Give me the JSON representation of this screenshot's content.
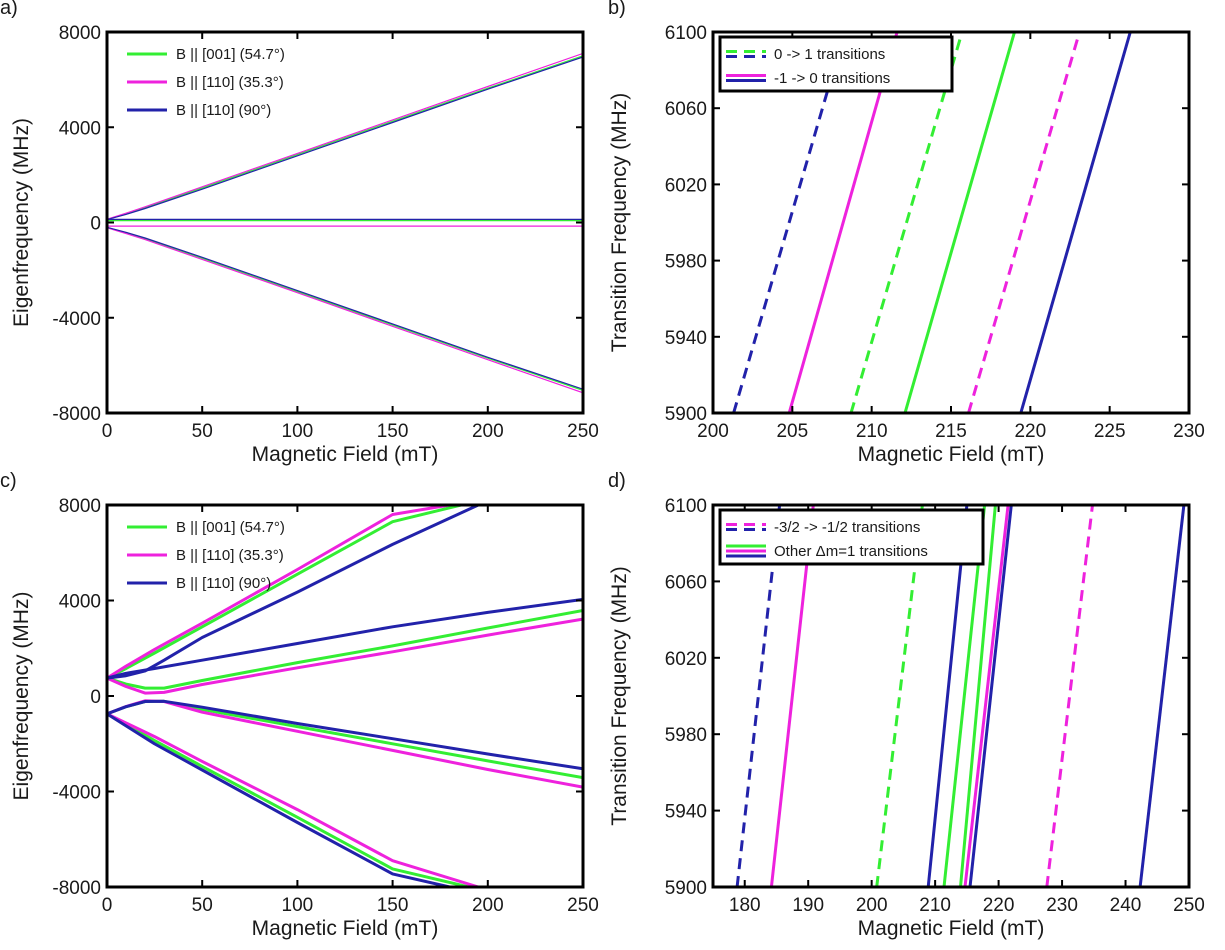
{
  "colors": {
    "green": "#33ee33",
    "magenta": "#ee22dd",
    "blue": "#2222aa"
  },
  "chart_data": [
    {
      "panel": "a)",
      "type": "line",
      "xlabel": "Magnetic Field (mT)",
      "ylabel": "Eigenfrequency (MHz)",
      "xlim": [
        0,
        250
      ],
      "ylim": [
        -8000,
        8000
      ],
      "xticks": [
        0,
        50,
        100,
        150,
        200,
        250
      ],
      "yticks": [
        -8000,
        -4000,
        0,
        4000,
        8000
      ],
      "grid": false,
      "legend": "top-left",
      "series": [
        {
          "name": "B || [001] (54.7°)",
          "color": "#33ee33",
          "lw": 1.2,
          "curves": [
            {
              "x": [
                0,
                10,
                20,
                50,
                100,
                150,
                200,
                250
              ],
              "y": [
                130,
                360,
                620,
                1450,
                2850,
                4250,
                5640,
                7000
              ]
            },
            {
              "x": [
                0,
                250
              ],
              "y": [
                80,
                80
              ]
            },
            {
              "x": [
                0,
                10,
                20,
                50,
                100,
                150,
                200,
                250
              ],
              "y": [
                -210,
                -430,
                -680,
                -1500,
                -2900,
                -4300,
                -5700,
                -7050
              ]
            }
          ]
        },
        {
          "name": "B || [110] (35.3°)",
          "color": "#ee22dd",
          "lw": 1.2,
          "curves": [
            {
              "x": [
                0,
                10,
                20,
                50,
                100,
                150,
                200,
                250
              ],
              "y": [
                140,
                390,
                660,
                1500,
                2900,
                4310,
                5710,
                7100
              ]
            },
            {
              "x": [
                0,
                250
              ],
              "y": [
                -150,
                -150
              ]
            },
            {
              "x": [
                0,
                10,
                20,
                50,
                100,
                150,
                200,
                250
              ],
              "y": [
                -220,
                -460,
                -720,
                -1550,
                -2950,
                -4360,
                -5760,
                -7150
              ]
            }
          ]
        },
        {
          "name": "B || [110] (90°)",
          "color": "#2222aa",
          "lw": 1.2,
          "curves": [
            {
              "x": [
                0,
                10,
                20,
                50,
                100,
                150,
                200,
                250
              ],
              "y": [
                120,
                340,
                590,
                1400,
                2800,
                4200,
                5600,
                6950
              ]
            },
            {
              "x": [
                0,
                250
              ],
              "y": [
                130,
                130
              ]
            },
            {
              "x": [
                0,
                10,
                20,
                50,
                100,
                150,
                200,
                250
              ],
              "y": [
                -200,
                -410,
                -650,
                -1460,
                -2860,
                -4260,
                -5660,
                -7000
              ]
            }
          ]
        }
      ]
    },
    {
      "panel": "b)",
      "type": "line",
      "xlabel": "Magnetic Field (mT)",
      "ylabel": "Transition Frequency (MHz)",
      "xlim": [
        200,
        230
      ],
      "ylim": [
        5900,
        6100
      ],
      "xticks": [
        200,
        205,
        210,
        215,
        220,
        225,
        230
      ],
      "yticks": [
        5900,
        5940,
        5980,
        6020,
        6060,
        6100
      ],
      "grid": false,
      "legend": "top-left",
      "legend_entries": [
        {
          "label": "0 -> 1 transitions",
          "style": "dashed",
          "colors": [
            "#33ee33",
            "#2222aa"
          ]
        },
        {
          "label": "-1 -> 0 transitions",
          "style": "solid",
          "colors": [
            "#ee22dd",
            "#2222aa"
          ]
        }
      ],
      "series": [
        {
          "color": "#2222aa",
          "dashed": true,
          "lw": 3,
          "curves": [
            {
              "x": [
                201.3,
                208.3
              ],
              "y": [
                5900,
                6100
              ]
            }
          ]
        },
        {
          "color": "#ee22dd",
          "dashed": false,
          "lw": 3,
          "curves": [
            {
              "x": [
                204.8,
                211.6
              ],
              "y": [
                5900,
                6100
              ]
            }
          ]
        },
        {
          "color": "#33ee33",
          "dashed": true,
          "lw": 3,
          "curves": [
            {
              "x": [
                208.7,
                215.7
              ],
              "y": [
                5900,
                6100
              ]
            }
          ]
        },
        {
          "color": "#33ee33",
          "dashed": false,
          "lw": 3,
          "curves": [
            {
              "x": [
                212.1,
                219.0
              ],
              "y": [
                5900,
                6100
              ]
            }
          ]
        },
        {
          "color": "#ee22dd",
          "dashed": true,
          "lw": 3,
          "curves": [
            {
              "x": [
                216.1,
                223.1
              ],
              "y": [
                5900,
                6100
              ]
            }
          ]
        },
        {
          "color": "#2222aa",
          "dashed": false,
          "lw": 3,
          "curves": [
            {
              "x": [
                219.4,
                226.3
              ],
              "y": [
                5900,
                6100
              ]
            }
          ]
        }
      ]
    },
    {
      "panel": "c)",
      "type": "line",
      "xlabel": "Magnetic Field (mT)",
      "ylabel": "Eigenfrequency (MHz)",
      "xlim": [
        0,
        250
      ],
      "ylim": [
        -8000,
        8000
      ],
      "xticks": [
        0,
        50,
        100,
        150,
        200,
        250
      ],
      "yticks": [
        -8000,
        -4000,
        0,
        4000,
        8000
      ],
      "grid": false,
      "legend": "top-left",
      "series": [
        {
          "name": "B || [001] (54.7°)",
          "color": "#33ee33",
          "lw": 3,
          "curves": [
            {
              "x": [
                0,
                10,
                25,
                50,
                100,
                150,
                186
              ],
              "y": [
                750,
                1150,
                1800,
                2900,
                5100,
                7300,
                8000
              ]
            },
            {
              "x": [
                0,
                10,
                20,
                30,
                50,
                100,
                150,
                200,
                250
              ],
              "y": [
                750,
                500,
                330,
                330,
                650,
                1400,
                2100,
                2850,
                3580
              ]
            },
            {
              "x": [
                0,
                10,
                20,
                30,
                50,
                100,
                150,
                200,
                250
              ],
              "y": [
                -750,
                -450,
                -230,
                -220,
                -560,
                -1280,
                -2000,
                -2720,
                -3420
              ]
            },
            {
              "x": [
                0,
                25,
                50,
                100,
                150,
                190
              ],
              "y": [
                -750,
                -1870,
                -2950,
                -5080,
                -7240,
                -8000
              ]
            }
          ]
        },
        {
          "name": "B || [110] (35.3°)",
          "color": "#ee22dd",
          "lw": 3,
          "curves": [
            {
              "x": [
                0,
                10,
                25,
                50,
                100,
                150,
                180
              ],
              "y": [
                750,
                1250,
                1950,
                3050,
                5300,
                7600,
                8000
              ]
            },
            {
              "x": [
                0,
                10,
                20,
                30,
                50,
                100,
                150,
                200,
                250
              ],
              "y": [
                750,
                400,
                120,
                150,
                480,
                1180,
                1850,
                2550,
                3220
              ]
            },
            {
              "x": [
                0,
                10,
                20,
                30,
                50,
                100,
                150,
                200,
                250
              ],
              "y": [
                -750,
                -440,
                -200,
                -230,
                -680,
                -1480,
                -2280,
                -3080,
                -3820
              ]
            },
            {
              "x": [
                0,
                25,
                50,
                100,
                150,
                195
              ],
              "y": [
                -750,
                -1700,
                -2740,
                -4760,
                -6900,
                -8000
              ]
            }
          ]
        },
        {
          "name": "B || [110] (90°)",
          "color": "#2222aa",
          "lw": 3,
          "curves": [
            {
              "x": [
                0,
                10,
                20,
                30,
                50,
                100,
                150,
                195
              ],
              "y": [
                750,
                850,
                1050,
                1500,
                2450,
                4350,
                6350,
                8000
              ]
            },
            {
              "x": [
                0,
                10,
                25,
                50,
                100,
                150,
                200,
                250
              ],
              "y": [
                750,
                950,
                1150,
                1500,
                2200,
                2900,
                3500,
                4050
              ]
            },
            {
              "x": [
                0,
                10,
                20,
                30,
                50,
                100,
                150,
                200,
                250
              ],
              "y": [
                -750,
                -450,
                -230,
                -220,
                -470,
                -1150,
                -1790,
                -2430,
                -3050
              ]
            },
            {
              "x": [
                0,
                25,
                50,
                100,
                150,
                180
              ],
              "y": [
                -750,
                -2000,
                -3100,
                -5300,
                -7450,
                -8000
              ]
            }
          ]
        }
      ]
    },
    {
      "panel": "d)",
      "type": "line",
      "xlabel": "Magnetic Field (mT)",
      "ylabel": "Transition Frequency (MHz)",
      "xlim": [
        175,
        250
      ],
      "ylim": [
        5900,
        6100
      ],
      "xticks": [
        180,
        190,
        200,
        210,
        220,
        230,
        240,
        250
      ],
      "yticks": [
        5900,
        5940,
        5980,
        6020,
        6060,
        6100
      ],
      "grid": false,
      "legend": "top-left",
      "legend_entries": [
        {
          "label": "-3/2 -> -1/2 transitions",
          "style": "dashed",
          "colors": [
            "#ee22dd",
            "#2222aa"
          ]
        },
        {
          "label": "Other Δm=1 transitions",
          "style": "solid",
          "colors": [
            "#33ee33",
            "#ee22dd",
            "#2222aa"
          ]
        }
      ],
      "series": [
        {
          "color": "#2222aa",
          "dashed": true,
          "lw": 3,
          "curves": [
            {
              "x": [
                178.8,
                185.5
              ],
              "y": [
                5900,
                6100
              ]
            }
          ]
        },
        {
          "color": "#ee22dd",
          "dashed": false,
          "lw": 3,
          "curves": [
            {
              "x": [
                184.2,
                190.8
              ],
              "y": [
                5900,
                6100
              ]
            }
          ]
        },
        {
          "color": "#33ee33",
          "dashed": true,
          "lw": 3,
          "curves": [
            {
              "x": [
                200.8,
                208.0
              ],
              "y": [
                5900,
                6100
              ]
            }
          ]
        },
        {
          "color": "#2222aa",
          "dashed": false,
          "lw": 3,
          "curves": [
            {
              "x": [
                208.9,
                215.0
              ],
              "y": [
                5900,
                6100
              ]
            }
          ]
        },
        {
          "color": "#33ee33",
          "dashed": false,
          "lw": 3,
          "curves": [
            {
              "x": [
                211.4,
                217.8
              ],
              "y": [
                5900,
                6100
              ]
            }
          ]
        },
        {
          "color": "#33ee33",
          "dashed": false,
          "lw": 3,
          "curves": [
            {
              "x": [
                214.0,
                219.5
              ],
              "y": [
                5900,
                6100
              ]
            }
          ]
        },
        {
          "color": "#ee22dd",
          "dashed": false,
          "lw": 3,
          "curves": [
            {
              "x": [
                214.7,
                221.5
              ],
              "y": [
                5900,
                6100
              ]
            }
          ]
        },
        {
          "color": "#2222aa",
          "dashed": false,
          "lw": 3,
          "curves": [
            {
              "x": [
                215.5,
                222.0
              ],
              "y": [
                5900,
                6100
              ]
            }
          ]
        },
        {
          "color": "#ee22dd",
          "dashed": true,
          "lw": 3,
          "curves": [
            {
              "x": [
                227.6,
                234.8
              ],
              "y": [
                5900,
                6100
              ]
            }
          ]
        },
        {
          "color": "#2222aa",
          "dashed": false,
          "lw": 3,
          "curves": [
            {
              "x": [
                242.3,
                249.2
              ],
              "y": [
                5900,
                6100
              ]
            }
          ]
        }
      ]
    }
  ]
}
